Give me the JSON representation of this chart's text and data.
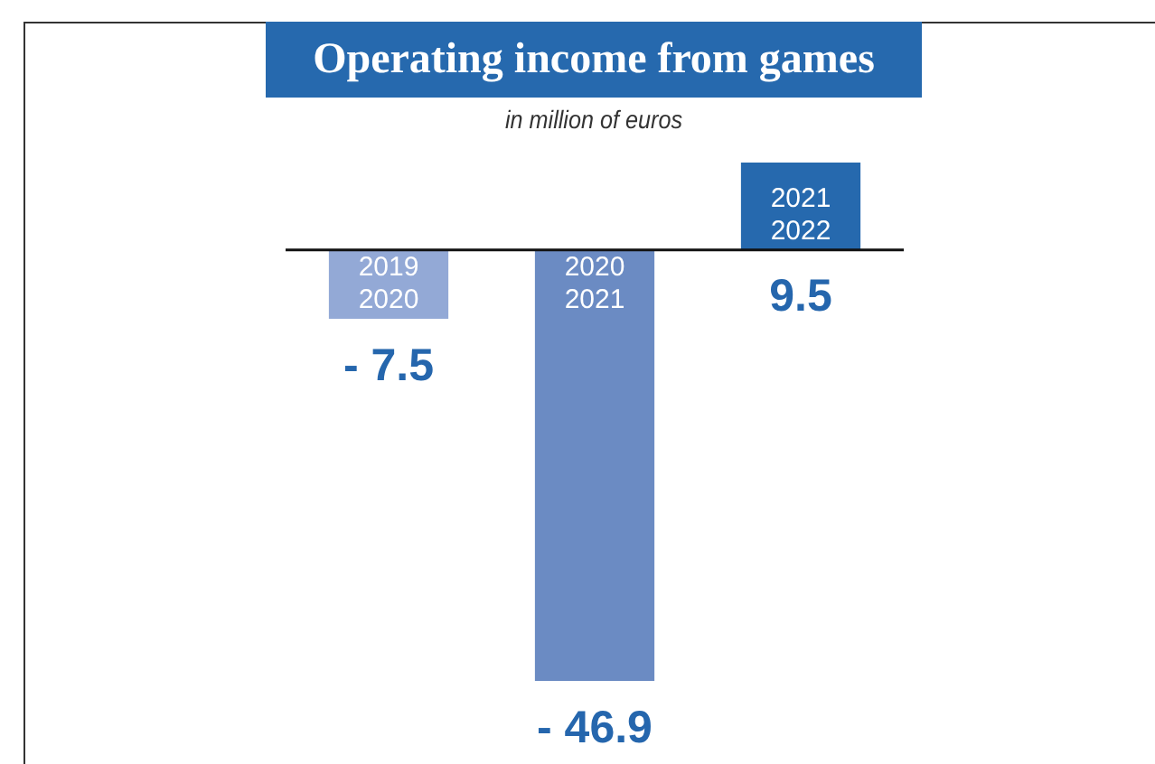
{
  "chart_data": {
    "type": "bar",
    "title": "Operating income from games",
    "subtitle": "in million of euros",
    "categories": [
      "2019\n2020",
      "2020\n2021",
      "2021\n2022"
    ],
    "values": [
      -7.5,
      -46.9,
      9.5
    ],
    "colors": [
      "#93a9d6",
      "#6b8bc3",
      "#2669ae"
    ],
    "value_labels": [
      "- 7.5",
      "- 46.9",
      "9.5"
    ]
  }
}
